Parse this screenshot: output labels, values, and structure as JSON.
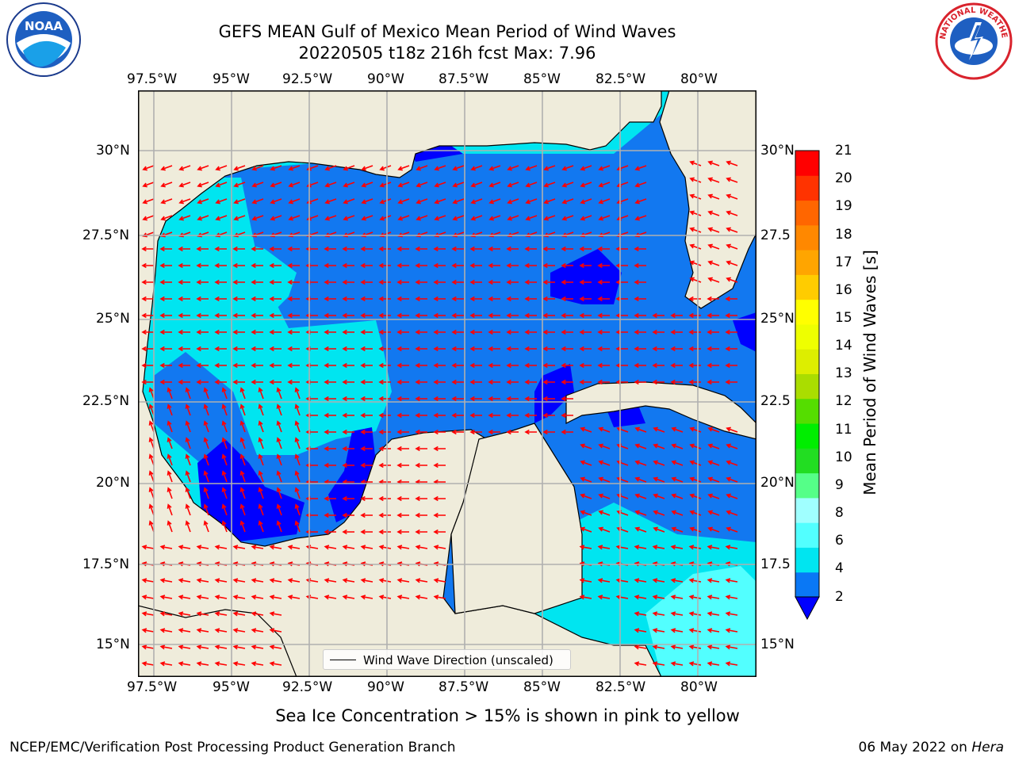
{
  "title_line1": "GEFS MEAN Gulf of Mexico Mean Period of Wind Waves",
  "title_line2": "20220505 t18z 216h fcst   Max: 7.96",
  "lon_ticks": [
    "97.5°W",
    "95°W",
    "92.5°W",
    "90°W",
    "87.5°W",
    "85°W",
    "82.5°W",
    "80°W"
  ],
  "lat_ticks_left": [
    "30°N",
    "27.5°N",
    "25°N",
    "22.5°N",
    "20°N",
    "17.5°N",
    "15°N"
  ],
  "lat_ticks_right": [
    "30°N",
    "27.5",
    "25°N",
    "22.5",
    "20°N",
    "17.5",
    "15°N"
  ],
  "colorbar": {
    "label": "Mean Period of Wind Waves [s]",
    "ticks": [
      "21",
      "20",
      "19",
      "18",
      "17",
      "16",
      "15",
      "14",
      "13",
      "12",
      "11",
      "10",
      "9",
      "8",
      "6",
      "4",
      "2"
    ],
    "colors": [
      "#0000ff",
      "#0a78f5",
      "#00e5f0",
      "#52ffff",
      "#a0ffff",
      "#55ff88",
      "#22dd22",
      "#00ee00",
      "#55dd00",
      "#aadd00",
      "#ddee00",
      "#eeff00",
      "#ffff00",
      "#ffcc00",
      "#ffa500",
      "#ff8800",
      "#ff6600",
      "#ff3300",
      "#ff0000"
    ]
  },
  "legend_label": "Wind Wave Direction (unscaled)",
  "sea_ice_note": "Sea Ice Concentration > 15% is shown in pink to yellow",
  "credit": "NCEP/EMC/Verification Post Processing Product Generation Branch",
  "date_prefix": "06 May 2022 on ",
  "date_host": "Hera",
  "logo_noaa": "NOAA",
  "logo_nws": "NATIONAL WEATHER SERVICE",
  "colors": {
    "land": "#efecdb",
    "sea_2_4": "#1278f0",
    "sea_under_2": "#0000ff",
    "sea_4_6": "#00e5f0",
    "sea_6_8": "#52ffff",
    "arrow": "#ff0000",
    "grid": "#b0b0b0"
  }
}
